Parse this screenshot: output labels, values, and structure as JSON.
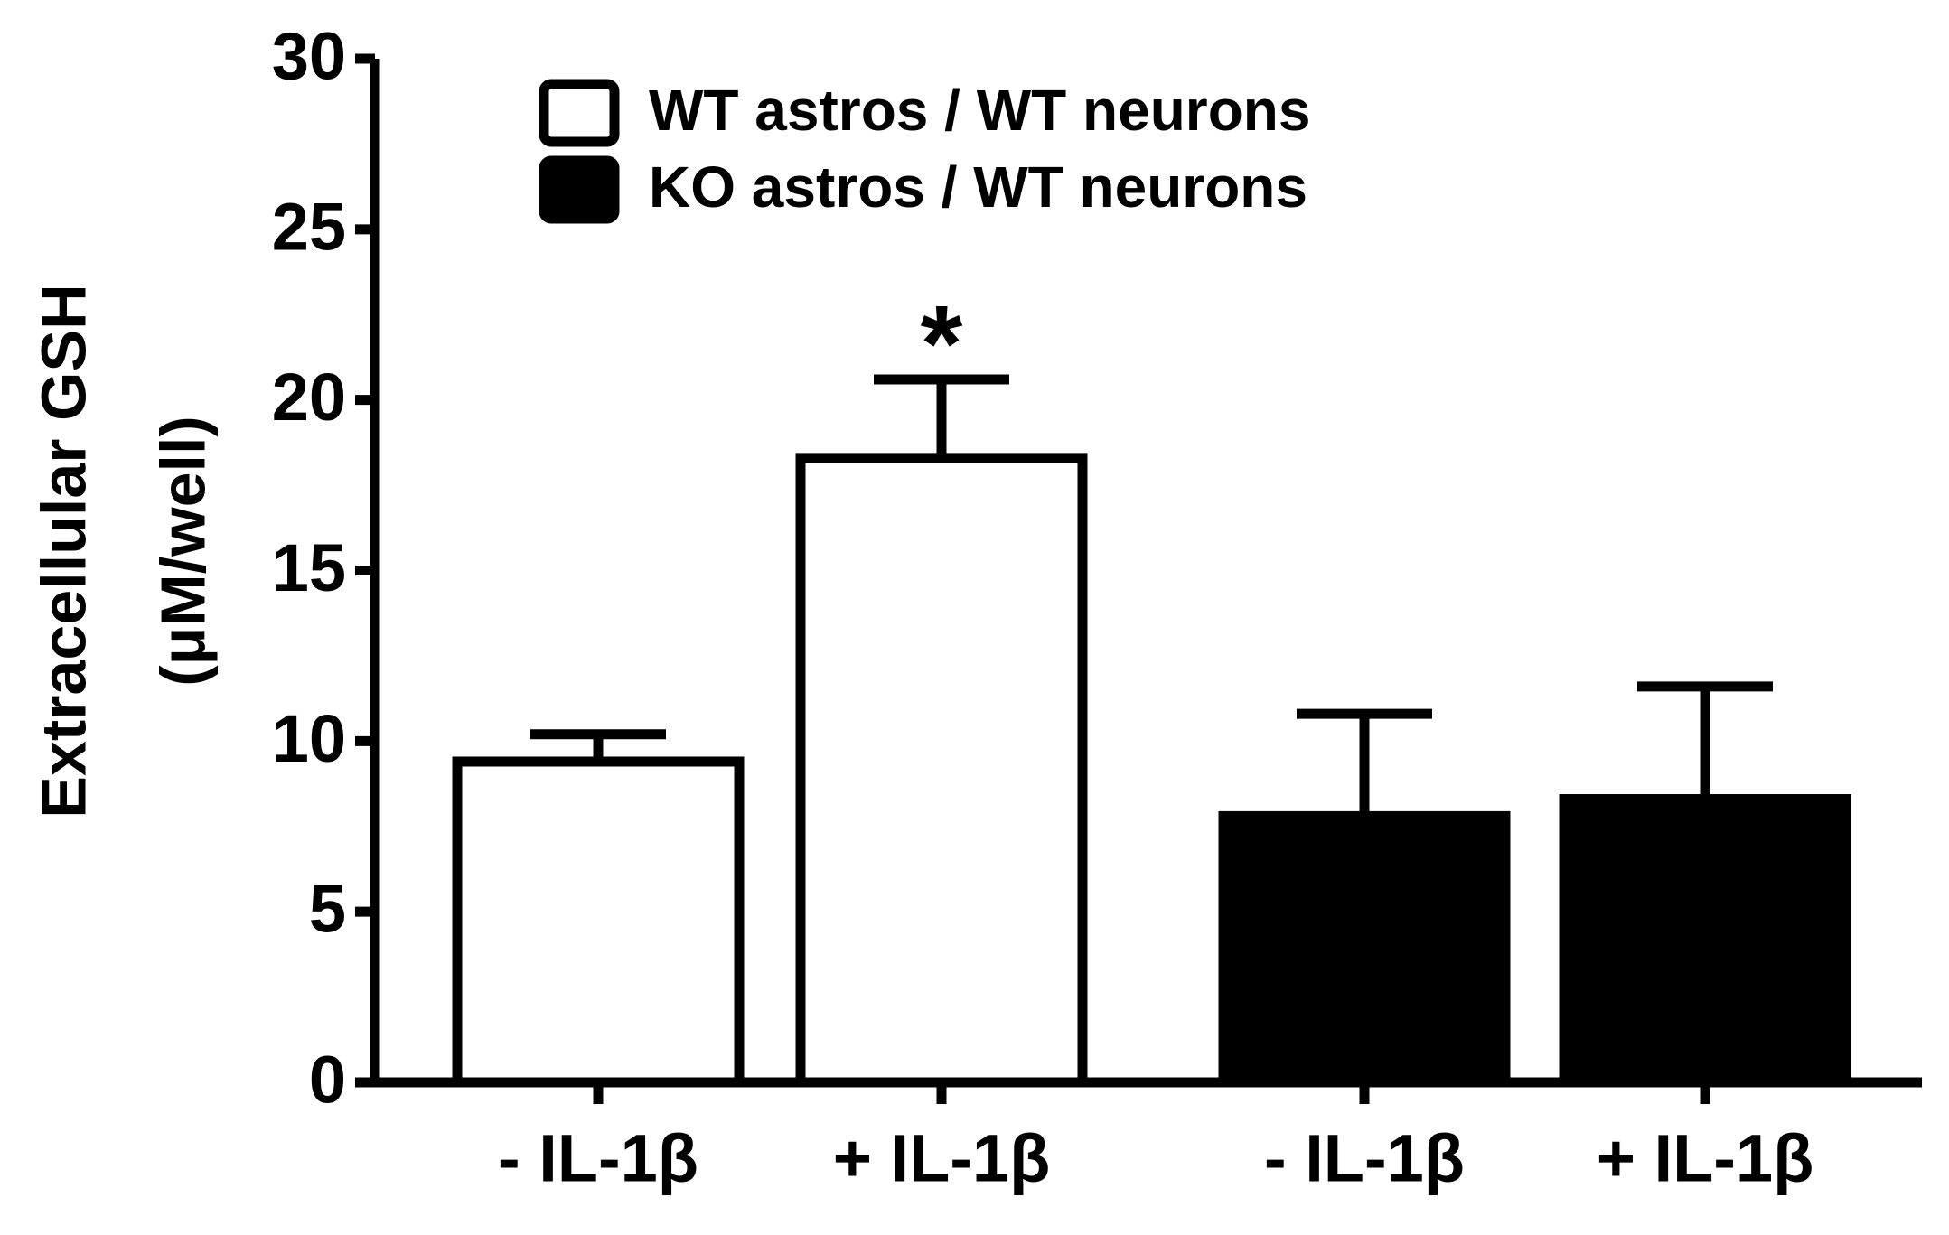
{
  "chart_data": {
    "type": "bar",
    "ylabel": [
      "Extracellular GSH",
      "(μM/well)"
    ],
    "categories": [
      "- IL-1β",
      "+ IL-1β",
      "- IL-1β",
      "+ IL-1β"
    ],
    "series": [
      {
        "name": "WT astros / WT neurons",
        "color": "#ffffff",
        "values": [
          9.4,
          18.3,
          null,
          null
        ],
        "errors": [
          0.8,
          2.3,
          null,
          null
        ]
      },
      {
        "name": "KO astros / WT neurons",
        "color": "#000000",
        "values": [
          null,
          null,
          7.8,
          8.3
        ],
        "errors": [
          null,
          null,
          3.0,
          3.3
        ]
      }
    ],
    "annotations": [
      {
        "text": "*",
        "category": 1
      }
    ],
    "ylim": [
      0,
      30
    ],
    "yticks": [
      0,
      5,
      10,
      15,
      20,
      25,
      30
    ],
    "legend": "upper left",
    "grid": false
  }
}
